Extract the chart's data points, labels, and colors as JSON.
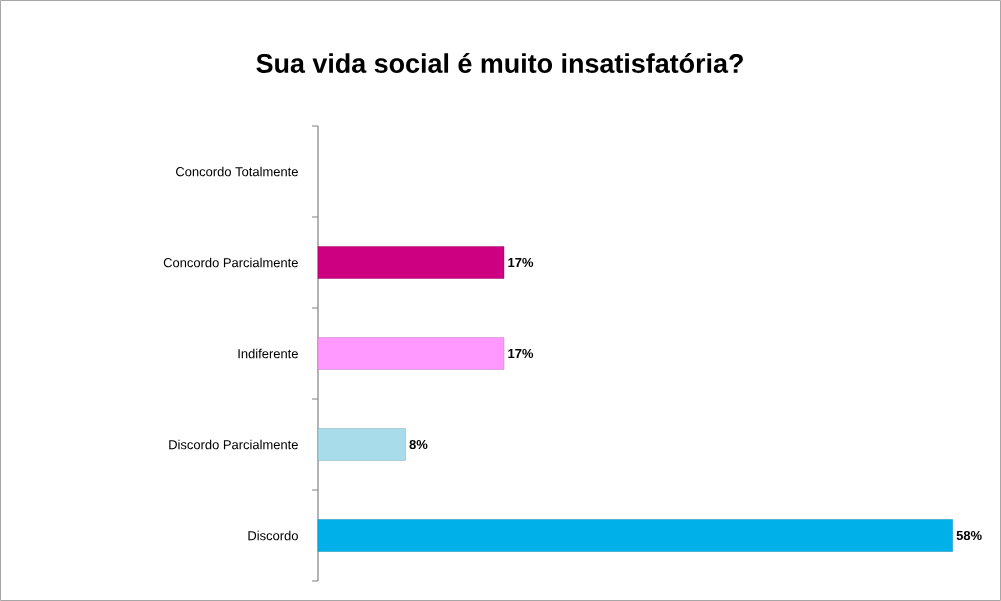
{
  "chart_data": {
    "type": "bar",
    "orientation": "horizontal",
    "title": "Sua vida social é muito insatisfatória?",
    "categories": [
      "Concordo Totalmente",
      "Concordo Parcialmente",
      "Indiferente",
      "Discordo Parcialmente",
      "Discordo"
    ],
    "values": [
      null,
      17,
      17,
      8,
      58
    ],
    "value_labels": [
      null,
      "17%",
      "17%",
      "8%",
      "58%"
    ],
    "colors": [
      "#ffffff",
      "#cc0080",
      "#ff99ff",
      "#a8dcea",
      "#00b0e8"
    ]
  }
}
